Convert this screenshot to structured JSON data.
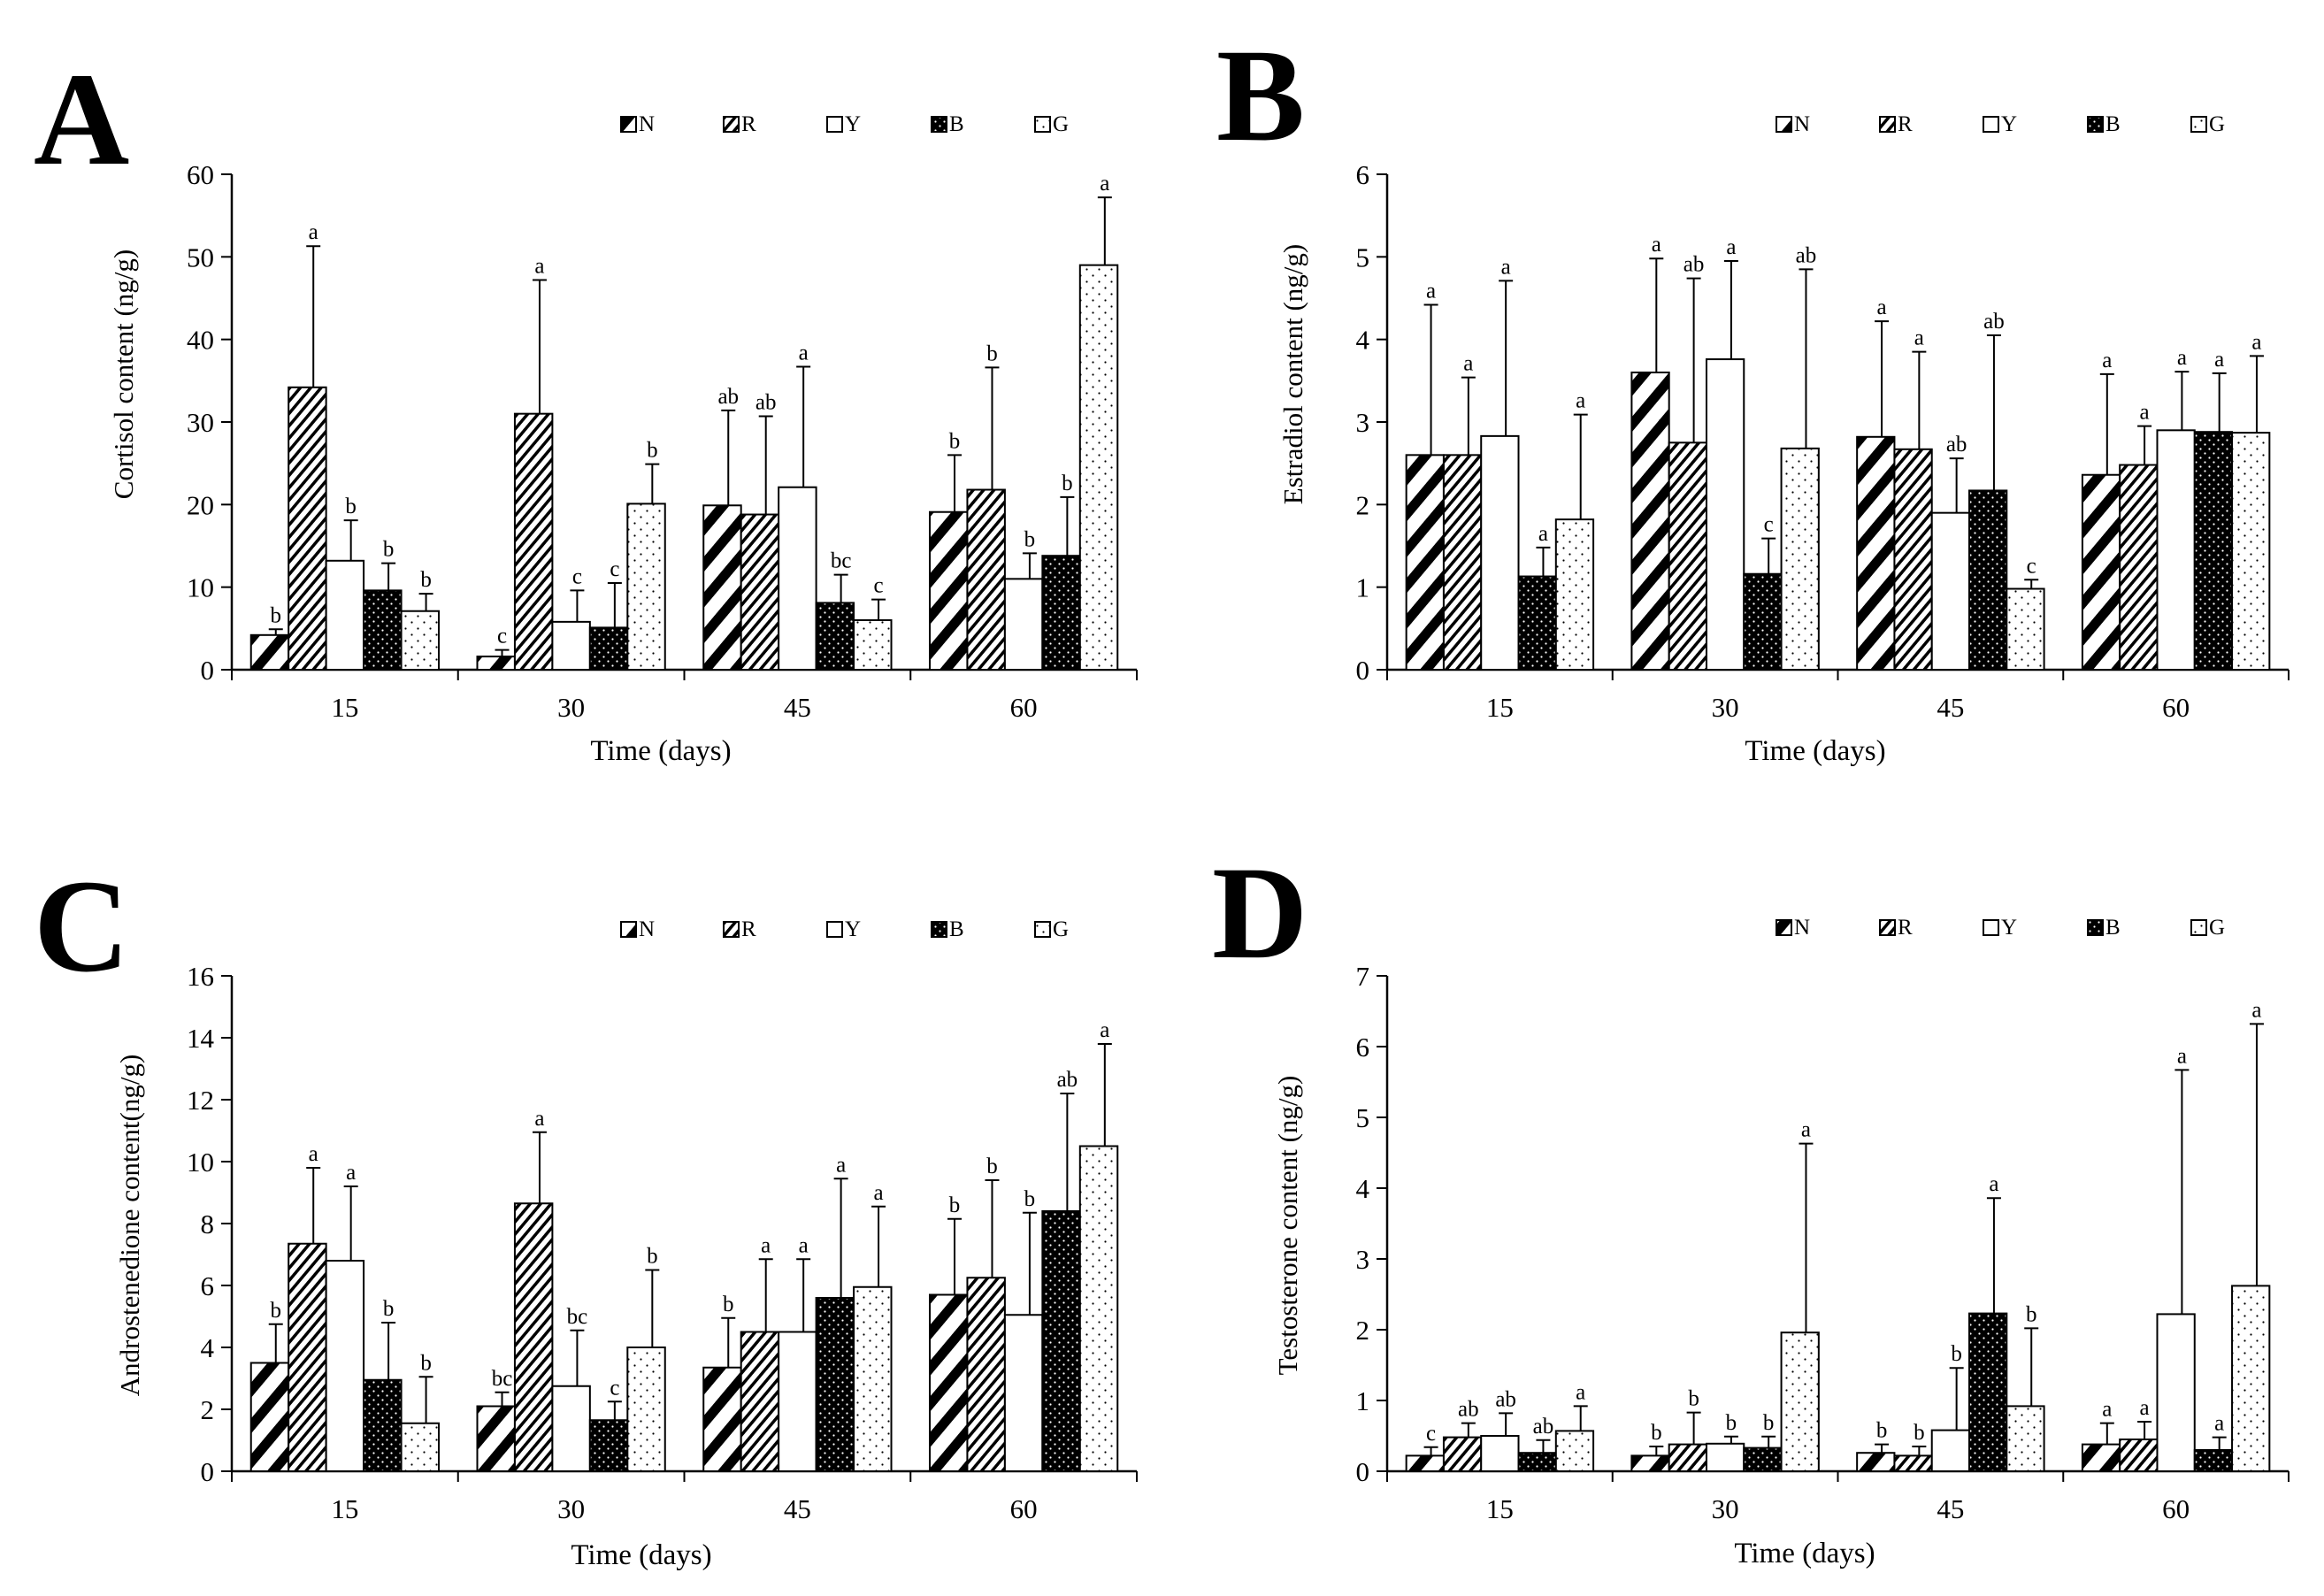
{
  "figure": {
    "xlabel": "Time (days)",
    "groups": [
      "N",
      "R",
      "Y",
      "B",
      "G"
    ]
  },
  "chart_data": [
    {
      "panel": "A",
      "type": "bar",
      "ylabel": "Cortisol content (ng/g)",
      "ylabel_color": "#3a5068",
      "xlabel": "Time (days)",
      "categories": [
        "15",
        "30",
        "45",
        "60"
      ],
      "ylim": [
        0,
        60
      ],
      "yticks": [
        0,
        10,
        20,
        30,
        40,
        50,
        60
      ],
      "legend": [
        "N",
        "R",
        "Y",
        "B",
        "G"
      ],
      "series": [
        {
          "name": "N",
          "values": [
            4.2,
            1.6,
            19.9,
            19.1
          ],
          "errors": [
            0.7,
            0.8,
            11.5,
            6.9
          ],
          "letters": [
            "b",
            "c",
            "ab",
            "b"
          ]
        },
        {
          "name": "R",
          "values": [
            34.2,
            31.0,
            18.8,
            21.8
          ],
          "errors": [
            17.1,
            16.2,
            11.9,
            14.8
          ],
          "letters": [
            "a",
            "a",
            "ab",
            "b"
          ]
        },
        {
          "name": "Y",
          "values": [
            13.2,
            5.8,
            22.1,
            11.0
          ],
          "errors": [
            4.9,
            3.8,
            14.6,
            3.1
          ],
          "letters": [
            "b",
            "c",
            "a",
            "b"
          ]
        },
        {
          "name": "B",
          "values": [
            9.6,
            5.1,
            8.1,
            13.8
          ],
          "errors": [
            3.3,
            5.4,
            3.4,
            7.1
          ],
          "letters": [
            "b",
            "c",
            "bc",
            "b"
          ]
        },
        {
          "name": "G",
          "values": [
            7.1,
            20.1,
            6.0,
            49.0
          ],
          "errors": [
            2.1,
            4.8,
            2.5,
            8.2
          ],
          "letters": [
            "b",
            "b",
            "c",
            "a"
          ]
        }
      ]
    },
    {
      "panel": "B",
      "type": "bar",
      "ylabel": "Estradiol content (ng/g)",
      "ylabel_color": "#000000",
      "xlabel": "Time (days)",
      "categories": [
        "15",
        "30",
        "45",
        "60"
      ],
      "ylim": [
        0,
        6
      ],
      "yticks": [
        0,
        1,
        2,
        3,
        4,
        5,
        6
      ],
      "legend": [
        "N",
        "R",
        "Y",
        "B",
        "G"
      ],
      "series": [
        {
          "name": "N",
          "values": [
            2.6,
            3.6,
            2.82,
            2.36
          ],
          "errors": [
            1.82,
            1.38,
            1.4,
            1.22
          ],
          "letters": [
            "a",
            "a",
            "a",
            "a"
          ]
        },
        {
          "name": "R",
          "values": [
            2.6,
            2.75,
            2.67,
            2.48
          ],
          "errors": [
            0.94,
            1.99,
            1.18,
            0.47
          ],
          "letters": [
            "a",
            "ab",
            "a",
            "a"
          ]
        },
        {
          "name": "Y",
          "values": [
            2.83,
            3.76,
            1.9,
            2.9
          ],
          "errors": [
            1.88,
            1.19,
            0.66,
            0.71
          ],
          "letters": [
            "a",
            "a",
            "ab",
            "a"
          ]
        },
        {
          "name": "B",
          "values": [
            1.13,
            1.16,
            2.17,
            2.88
          ],
          "errors": [
            0.35,
            0.43,
            1.88,
            0.71
          ],
          "letters": [
            "a",
            "c",
            "ab",
            "a"
          ]
        },
        {
          "name": "G",
          "values": [
            1.82,
            2.68,
            0.98,
            2.87
          ],
          "errors": [
            1.27,
            2.17,
            0.11,
            0.93
          ],
          "letters": [
            "a",
            "ab",
            "c",
            "a"
          ]
        }
      ]
    },
    {
      "panel": "C",
      "type": "bar",
      "ylabel": "Androstenedione content(ng/g)",
      "ylabel_color": "#000000",
      "xlabel": "Time (days)",
      "categories": [
        "15",
        "30",
        "45",
        "60"
      ],
      "ylim": [
        0,
        16
      ],
      "yticks": [
        0,
        2,
        4,
        6,
        8,
        10,
        12,
        14,
        16
      ],
      "legend": [
        "N",
        "R",
        "Y",
        "B",
        "G"
      ],
      "series": [
        {
          "name": "N",
          "values": [
            3.5,
            2.1,
            3.35,
            5.7
          ],
          "errors": [
            1.25,
            0.45,
            1.6,
            2.45
          ],
          "letters": [
            "b",
            "bc",
            "b",
            "b"
          ]
        },
        {
          "name": "R",
          "values": [
            7.35,
            8.65,
            4.5,
            6.25
          ],
          "errors": [
            2.45,
            2.3,
            2.35,
            3.15
          ],
          "letters": [
            "a",
            "a",
            "a",
            "b"
          ]
        },
        {
          "name": "Y",
          "values": [
            6.8,
            2.75,
            4.5,
            5.05
          ],
          "errors": [
            2.4,
            1.8,
            2.35,
            3.3
          ],
          "letters": [
            "a",
            "bc",
            "a",
            "b"
          ]
        },
        {
          "name": "B",
          "values": [
            2.95,
            1.65,
            5.6,
            8.4
          ],
          "errors": [
            1.85,
            0.6,
            3.85,
            3.8
          ],
          "letters": [
            "b",
            "c",
            "a",
            "ab"
          ]
        },
        {
          "name": "G",
          "values": [
            1.55,
            4.0,
            5.95,
            10.5
          ],
          "errors": [
            1.5,
            2.5,
            2.6,
            3.3
          ],
          "letters": [
            "b",
            "b",
            "a",
            "a"
          ]
        }
      ]
    },
    {
      "panel": "D",
      "type": "bar",
      "ylabel": "Testosterone content (ng/g)",
      "ylabel_color": "#000000",
      "xlabel": "Time (days)",
      "categories": [
        "15",
        "30",
        "45",
        "60"
      ],
      "ylim": [
        0,
        7
      ],
      "yticks": [
        0,
        1,
        2,
        3,
        4,
        5,
        6,
        7
      ],
      "legend": [
        "N",
        "R",
        "Y",
        "B",
        "G"
      ],
      "series": [
        {
          "name": "N",
          "values": [
            0.22,
            0.22,
            0.26,
            0.38
          ],
          "errors": [
            0.12,
            0.13,
            0.12,
            0.3
          ],
          "letters": [
            "c",
            "b",
            "b",
            "a"
          ]
        },
        {
          "name": "R",
          "values": [
            0.48,
            0.38,
            0.22,
            0.45
          ],
          "errors": [
            0.2,
            0.45,
            0.13,
            0.25
          ],
          "letters": [
            "ab",
            "b",
            "b",
            "a"
          ]
        },
        {
          "name": "Y",
          "values": [
            0.5,
            0.39,
            0.58,
            2.22
          ],
          "errors": [
            0.32,
            0.1,
            0.88,
            3.45
          ],
          "letters": [
            "ab",
            "b",
            "b",
            "a"
          ]
        },
        {
          "name": "B",
          "values": [
            0.26,
            0.33,
            2.23,
            0.3
          ],
          "errors": [
            0.18,
            0.16,
            1.63,
            0.18
          ],
          "letters": [
            "ab",
            "b",
            "a",
            "a"
          ]
        },
        {
          "name": "G",
          "values": [
            0.57,
            1.96,
            0.92,
            2.62
          ],
          "errors": [
            0.35,
            2.67,
            1.1,
            3.7
          ],
          "letters": [
            "a",
            "a",
            "b",
            "a"
          ]
        }
      ]
    }
  ]
}
